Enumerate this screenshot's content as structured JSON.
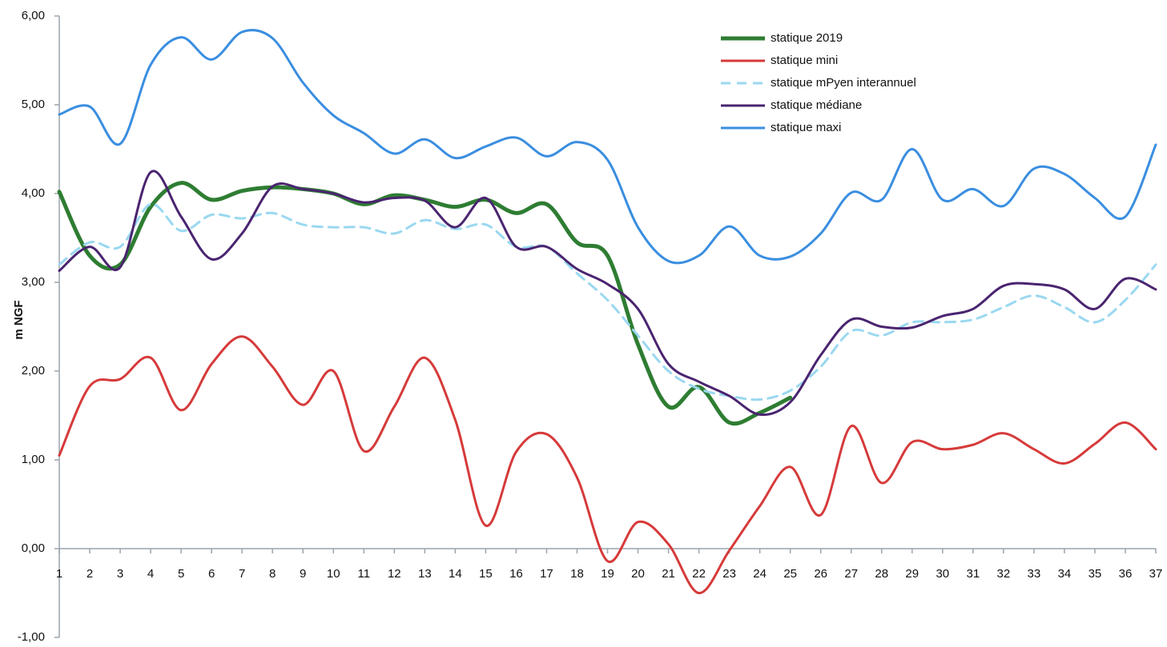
{
  "chart_data": {
    "type": "line",
    "y_label": "m NGF",
    "x": [
      1,
      2,
      3,
      4,
      5,
      6,
      7,
      8,
      9,
      10,
      11,
      12,
      13,
      14,
      15,
      16,
      17,
      18,
      19,
      20,
      21,
      22,
      23,
      24,
      25,
      26,
      27,
      28,
      29,
      30,
      31,
      32,
      33,
      34,
      35,
      36,
      37
    ],
    "xlim": [
      1,
      37
    ],
    "xticks": [
      1,
      2,
      3,
      4,
      5,
      6,
      7,
      8,
      9,
      10,
      11,
      12,
      13,
      14,
      15,
      16,
      17,
      18,
      19,
      20,
      21,
      22,
      23,
      24,
      25,
      26,
      27,
      28,
      29,
      30,
      31,
      32,
      33,
      34,
      35,
      36,
      37
    ],
    "ylim": [
      -1,
      6
    ],
    "yticks": [
      {
        "value": -1,
        "label": "-1,00"
      },
      {
        "value": 0,
        "label": "0,00"
      },
      {
        "value": 1,
        "label": "1,00"
      },
      {
        "value": 2,
        "label": "2,00"
      },
      {
        "value": 3,
        "label": "3,00"
      },
      {
        "value": 4,
        "label": "4,00"
      },
      {
        "value": 5,
        "label": "5,00"
      },
      {
        "value": 6,
        "label": "6,00"
      }
    ],
    "legend": "top-right",
    "series": [
      {
        "name": "statique 2019",
        "color": "#2e7d32",
        "width": 5,
        "dash": false,
        "values": [
          4.02,
          3.3,
          3.2,
          3.85,
          4.12,
          3.93,
          4.03,
          4.07,
          4.05,
          4.0,
          3.88,
          3.98,
          3.93,
          3.85,
          3.93,
          3.78,
          3.88,
          3.45,
          3.3,
          2.3,
          1.6,
          1.82,
          1.42,
          1.53,
          1.7,
          null,
          null,
          null,
          null,
          null,
          null,
          null,
          null,
          null,
          null,
          null,
          null
        ]
      },
      {
        "name": "statique mini",
        "color": "#d63a3a",
        "width": 3,
        "dash": false,
        "values": [
          1.05,
          1.83,
          1.91,
          2.15,
          1.56,
          2.08,
          2.39,
          2.05,
          1.62,
          2.0,
          1.1,
          1.6,
          2.15,
          1.45,
          0.26,
          1.09,
          1.29,
          0.8,
          -0.14,
          0.3,
          0.05,
          -0.5,
          -0.02,
          0.48,
          0.92,
          0.38,
          1.38,
          0.74,
          1.2,
          1.12,
          1.17,
          1.3,
          1.12,
          0.96,
          1.18,
          1.42,
          1.12
        ]
      },
      {
        "name": "statique mPyen interannuel",
        "color": "#9ad8f0",
        "width": 3,
        "dash": true,
        "values": [
          3.2,
          3.45,
          3.4,
          3.88,
          3.58,
          3.76,
          3.72,
          3.78,
          3.65,
          3.62,
          3.62,
          3.55,
          3.7,
          3.6,
          3.65,
          3.4,
          3.4,
          3.1,
          2.8,
          2.4,
          2.0,
          1.8,
          1.72,
          1.68,
          1.78,
          2.05,
          2.45,
          2.4,
          2.55,
          2.55,
          2.58,
          2.72,
          2.85,
          2.72,
          2.55,
          2.8,
          3.2
        ]
      },
      {
        "name": "statique médiane",
        "color": "#4a2470",
        "width": 3,
        "dash": false,
        "values": [
          3.13,
          3.4,
          3.17,
          4.24,
          3.74,
          3.26,
          3.55,
          4.08,
          4.05,
          4.0,
          3.9,
          3.95,
          3.92,
          3.62,
          3.95,
          3.4,
          3.4,
          3.15,
          2.98,
          2.7,
          2.08,
          1.88,
          1.72,
          1.51,
          1.65,
          2.18,
          2.58,
          2.5,
          2.49,
          2.62,
          2.7,
          2.96,
          2.98,
          2.92,
          2.7,
          3.04,
          2.92
        ]
      },
      {
        "name": "statique maxi",
        "color": "#3a8ee0",
        "width": 3,
        "dash": false,
        "values": [
          4.89,
          4.98,
          4.56,
          5.45,
          5.76,
          5.51,
          5.82,
          5.75,
          5.25,
          4.88,
          4.68,
          4.45,
          4.61,
          4.4,
          4.53,
          4.63,
          4.42,
          4.58,
          4.38,
          3.62,
          3.24,
          3.3,
          3.63,
          3.3,
          3.29,
          3.55,
          4.01,
          3.93,
          4.5,
          3.93,
          4.05,
          3.86,
          4.28,
          4.22,
          3.95,
          3.74,
          4.55
        ]
      }
    ]
  }
}
